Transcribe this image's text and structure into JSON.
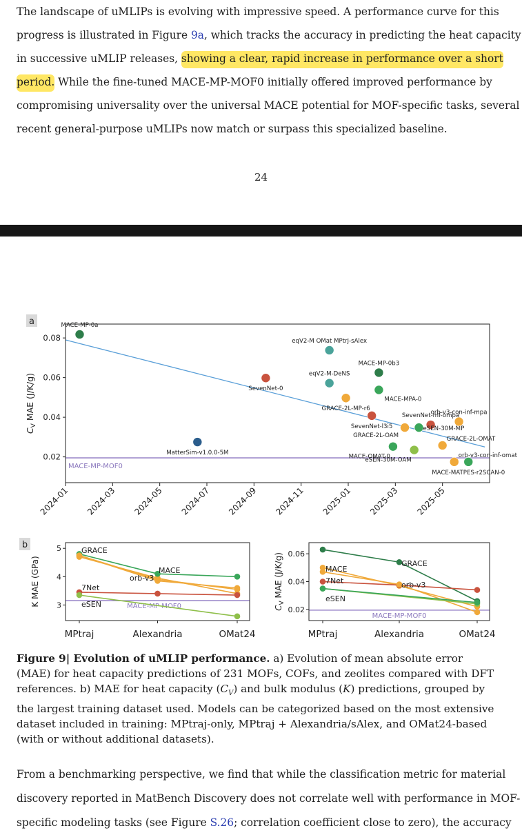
{
  "paragraph1": {
    "line1": "The landscape of uMLIPs is evolving with impressive speed. A performance curve for this",
    "line2_a": "progress is illustrated in Figure ",
    "line2_ref": "9a",
    "line2_b": ", which tracks the accuracy in predicting the heat capacity",
    "line3_a": "in successive uMLIP releases, ",
    "line3_hl": "showing a clear, rapid increase in performance over a short",
    "line4_hl": "period.",
    "line4_b": " While the fine-tuned MACE-MP-MOF0 initially offered improved performance by",
    "line5": "compromising universality over the universal MACE potential for MOF-specific tasks, several",
    "line6": "recent general-purpose uMLIPs now match or surpass this specialized baseline."
  },
  "page_number": "24",
  "caption": {
    "label": "Figure 9| Evolution of uMLIP performance.",
    "line1_rest": " a) Evolution of mean absolute error",
    "line2": "(MAE) for heat capacity predictions of 231 MOFs, COFs, and zeolites compared with DFT",
    "line3_a": "references. b) MAE for heat capacity (",
    "line3_sym1": "C",
    "line3_sub1": "V",
    "line3_b": ") and bulk modulus (",
    "line3_sym2": "K",
    "line3_c": ") predictions, grouped by",
    "line4": "the largest training dataset used. Models can be categorized based on the most extensive",
    "line5": "dataset included in training: MPtraj-only, MPtraj + Alexandria/sAlex, and OMat24-based",
    "line6": "(with or without additional datasets)."
  },
  "paragraph2": {
    "line1": "From a benchmarking perspective, we find that while the classification metric for material",
    "line2": "discovery reported in MatBench Discovery does not correlate well with performance in MOF-",
    "line3_a": "specific modeling tasks (see Figure ",
    "line3_ref": "S.26",
    "line3_b": "; correlation coefficient close to zero), the accuracy"
  },
  "colors": {
    "green_dark": "#2e7d4a",
    "green": "#3aa65a",
    "teal": "#4aa39a",
    "orange": "#f0a93a",
    "red": "#c9533e",
    "olive": "#8fbf4a",
    "navy": "#2b5d8c",
    "purple": "#9b88c9",
    "band": "#d6e8f7",
    "trend": "#5a9fd8",
    "highlight": "#ffdc28",
    "link": "#2a3db0"
  },
  "chart_data": [
    {
      "panel": "a",
      "type": "scatter",
      "ylabel": "C_V MAE (J/K/g)",
      "ylabel_parts": {
        "main": "C",
        "sub": "V",
        "rest": " MAE (J/K/g)"
      },
      "xlabel": "",
      "x_ticks": [
        "2024-01",
        "2024-03",
        "2024-05",
        "2024-07",
        "2024-09",
        "2024-11",
        "2025-01",
        "2025-03",
        "2025-05"
      ],
      "xlim": [
        0,
        18
      ],
      "y_ticks": [
        0.02,
        0.04,
        0.06,
        0.08
      ],
      "y_tick_labels": [
        "0.02",
        "0.04",
        "0.06",
        "0.08"
      ],
      "ylim": [
        0.007,
        0.087
      ],
      "trend": {
        "start": [
          0,
          0.079
        ],
        "end": [
          17.8,
          0.025
        ],
        "band_halfwidth": 0.009
      },
      "baseline": {
        "label": "MACE-MP-MOF0",
        "value": 0.0195
      },
      "points": [
        {
          "label": "MACE-MP-0a",
          "x": 0.6,
          "y": 0.0818,
          "color": "green_dark",
          "label_pos": "above"
        },
        {
          "label": "MatterSim-v1.0.0-5M",
          "x": 5.6,
          "y": 0.0275,
          "color": "navy",
          "label_pos": "below"
        },
        {
          "label": "SevenNet-0",
          "x": 8.5,
          "y": 0.0598,
          "color": "red",
          "label_pos": "below"
        },
        {
          "label": "eqV2-M OMat MPtrj-sAlex",
          "x": 11.2,
          "y": 0.0738,
          "color": "teal",
          "label_pos": "above"
        },
        {
          "label": "eqV2-M-DeNS",
          "x": 11.2,
          "y": 0.0572,
          "color": "teal",
          "label_pos": "above"
        },
        {
          "label": "GRACE-2L-MP-r6",
          "x": 11.9,
          "y": 0.0497,
          "color": "orange",
          "label_pos": "below"
        },
        {
          "label": "MACE-MP-0b3",
          "x": 13.3,
          "y": 0.0625,
          "color": "green_dark",
          "label_pos": "above"
        },
        {
          "label": "MACE-MPA-0",
          "x": 13.3,
          "y": 0.0538,
          "color": "green",
          "label_pos": "below-right"
        },
        {
          "label": "SevenNet-l3i5",
          "x": 13.0,
          "y": 0.0408,
          "color": "red",
          "label_pos": "below"
        },
        {
          "label": "GRACE-2L-OAM",
          "x": 14.4,
          "y": 0.0348,
          "color": "orange",
          "label_pos": "left"
        },
        {
          "label": "SevenNet-mf-ompa",
          "x": 15.5,
          "y": 0.0362,
          "color": "red",
          "label_pos": "above"
        },
        {
          "label": "eSEN-30M-MP",
          "x": 15.0,
          "y": 0.0348,
          "color": "green",
          "label_pos": "right"
        },
        {
          "label": "orb-v3-con-inf-mpa",
          "x": 16.7,
          "y": 0.0378,
          "color": "orange",
          "label_pos": "above"
        },
        {
          "label": "MACE-OMAT-0",
          "x": 13.9,
          "y": 0.0252,
          "color": "green",
          "label_pos": "below-left"
        },
        {
          "label": "eSEN-30M-OAM",
          "x": 14.8,
          "y": 0.0235,
          "color": "olive",
          "label_pos": "below-left"
        },
        {
          "label": "GRACE-2L-OMAT",
          "x": 16.0,
          "y": 0.0258,
          "color": "orange",
          "label_pos": "above-right"
        },
        {
          "label": "orb-v3-con-inf-omat",
          "x": 16.5,
          "y": 0.0175,
          "color": "orange",
          "label_pos": "above-right"
        },
        {
          "label": "MACE-MATPES-r2SCAN-0",
          "x": 17.1,
          "y": 0.0175,
          "color": "green",
          "label_pos": "below"
        }
      ]
    },
    {
      "panel": "b-left",
      "type": "line",
      "ylabel": "K MAE (GPa)",
      "categories": [
        "MPtraj",
        "Alexandria",
        "OMat24"
      ],
      "y_ticks": [
        3,
        4,
        5
      ],
      "ylim": [
        2.45,
        5.2
      ],
      "baseline": {
        "label": "MACE-MP-MOF0",
        "value": 3.15
      },
      "series": [
        {
          "name": "GRACE",
          "color": "orange",
          "values": [
            4.75,
            3.9,
            3.55
          ]
        },
        {
          "name": "GRACE",
          "color": "orange",
          "values": [
            4.7,
            3.95,
            3.4
          ]
        },
        {
          "name": "MACE",
          "color": "green",
          "values": [
            4.8,
            4.1,
            4.0
          ]
        },
        {
          "name": "orb-v3",
          "color": "orange",
          "values": [
            4.75,
            3.85,
            3.6
          ]
        },
        {
          "name": "7Net",
          "color": "red",
          "values": [
            3.45,
            3.4,
            3.35
          ]
        },
        {
          "name": "eSEN",
          "color": "olive",
          "values": [
            3.35,
            null,
            2.6
          ]
        }
      ],
      "line_labels": [
        "GRACE",
        "MACE",
        "orb-v3",
        "7Net",
        "eSEN"
      ]
    },
    {
      "panel": "b-right",
      "type": "line",
      "ylabel": "C_V MAE (J/K/g)",
      "ylabel_parts": {
        "main": "C",
        "sub": "V",
        "rest": " MAE (J/K/g)"
      },
      "categories": [
        "MPtraj",
        "Alexandria",
        "OMat24"
      ],
      "y_ticks": [
        0.02,
        0.04,
        0.06
      ],
      "y_tick_labels": [
        "0.02",
        "0.04",
        "0.06"
      ],
      "ylim": [
        0.012,
        0.068
      ],
      "baseline": {
        "label": "MACE-MP-MOF0",
        "value": 0.0195
      },
      "series": [
        {
          "name": "MACE",
          "color": "green_dark",
          "values": [
            0.063,
            0.054,
            0.026
          ]
        },
        {
          "name": "GRACE",
          "color": "orange",
          "values": [
            0.05,
            0.037,
            0.022
          ]
        },
        {
          "name": "7Net",
          "color": "red",
          "values": [
            0.04,
            0.0375,
            0.034
          ]
        },
        {
          "name": "orb-v3",
          "color": "orange",
          "values": [
            0.047,
            0.038,
            0.018
          ]
        },
        {
          "name": "eSEN",
          "color": "olive",
          "values": [
            0.035,
            null,
            0.024
          ]
        },
        {
          "name": "",
          "color": "green",
          "values": [
            0.035,
            null,
            0.025
          ]
        }
      ],
      "line_labels": [
        "MACE",
        "GRACE",
        "7Net",
        "orb-v3",
        "eSEN"
      ]
    }
  ]
}
